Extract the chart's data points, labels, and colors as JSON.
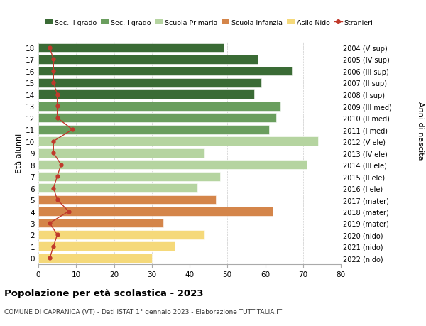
{
  "ages": [
    18,
    17,
    16,
    15,
    14,
    13,
    12,
    11,
    10,
    9,
    8,
    7,
    6,
    5,
    4,
    3,
    2,
    1,
    0
  ],
  "right_labels": [
    "2004 (V sup)",
    "2005 (IV sup)",
    "2006 (III sup)",
    "2007 (II sup)",
    "2008 (I sup)",
    "2009 (III med)",
    "2010 (II med)",
    "2011 (I med)",
    "2012 (V ele)",
    "2013 (IV ele)",
    "2014 (III ele)",
    "2015 (II ele)",
    "2016 (I ele)",
    "2017 (mater)",
    "2018 (mater)",
    "2019 (mater)",
    "2020 (nido)",
    "2021 (nido)",
    "2022 (nido)"
  ],
  "bar_values": [
    49,
    58,
    67,
    59,
    57,
    64,
    63,
    61,
    74,
    44,
    71,
    48,
    42,
    47,
    62,
    33,
    44,
    36,
    30
  ],
  "stranieri_values": [
    3,
    4,
    4,
    4,
    5,
    5,
    5,
    9,
    4,
    4,
    6,
    5,
    4,
    5,
    8,
    3,
    5,
    4,
    3
  ],
  "bar_colors": [
    "#3a6b35",
    "#3a6b35",
    "#3a6b35",
    "#3a6b35",
    "#3a6b35",
    "#6a9e5e",
    "#6a9e5e",
    "#6a9e5e",
    "#b5d4a0",
    "#b5d4a0",
    "#b5d4a0",
    "#b5d4a0",
    "#b5d4a0",
    "#d4854a",
    "#d4854a",
    "#d4854a",
    "#f5d97a",
    "#f5d97a",
    "#f5d97a"
  ],
  "legend_labels": [
    "Sec. II grado",
    "Sec. I grado",
    "Scuola Primaria",
    "Scuola Infanzia",
    "Asilo Nido",
    "Stranieri"
  ],
  "legend_colors": [
    "#3a6b35",
    "#6a9e5e",
    "#b5d4a0",
    "#d4854a",
    "#f5d97a",
    "#c0392b"
  ],
  "stranieri_color": "#c0392b",
  "title": "Popolazione per età scolastica - 2023",
  "subtitle": "COMUNE DI CAPRANICA (VT) - Dati ISTAT 1° gennaio 2023 - Elaborazione TUTTITALIA.IT",
  "ylabel_left": "Età alunni",
  "ylabel_right": "Anni di nascita",
  "xlim": [
    0,
    80
  ],
  "xticks": [
    0,
    10,
    20,
    30,
    40,
    50,
    60,
    70,
    80
  ],
  "background_color": "#ffffff",
  "grid_color": "#cccccc"
}
